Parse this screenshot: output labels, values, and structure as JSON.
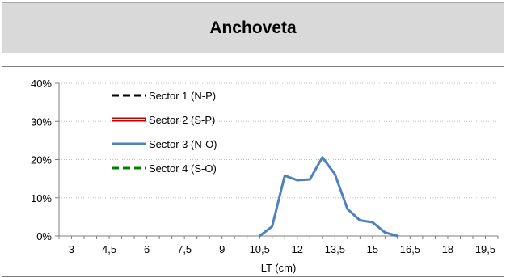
{
  "header": {
    "title": "Anchoveta"
  },
  "chart_data": {
    "type": "line",
    "title": "Anchoveta",
    "xlabel": "LT (cm)",
    "ylabel": "",
    "categories": [
      "3",
      "4,5",
      "6",
      "7,5",
      "9",
      "10,5",
      "12",
      "13,5",
      "15",
      "16,5",
      "18",
      "19,5"
    ],
    "x_range": [
      2.5,
      20
    ],
    "ylim": [
      0,
      40
    ],
    "y_ticks": [
      "0%",
      "10%",
      "20%",
      "30%",
      "40%"
    ],
    "grid": "horizontal dotted",
    "legend_position": "top-left",
    "series": [
      {
        "name": "Sector 1 (N-P)",
        "color": "#000000",
        "style": "dashed",
        "points": []
      },
      {
        "name": "Sector 2 (S-P)",
        "color": "#c00000",
        "style": "double",
        "points": []
      },
      {
        "name": "Sector 3 (N-O)",
        "color": "#4f81bd",
        "style": "solid",
        "points": [
          [
            10.5,
            0
          ],
          [
            11,
            2.5
          ],
          [
            11.5,
            15.8
          ],
          [
            12,
            14.6
          ],
          [
            12.5,
            14.8
          ],
          [
            13,
            20.6
          ],
          [
            13.5,
            16.2
          ],
          [
            14,
            7.1
          ],
          [
            14.5,
            4.1
          ],
          [
            15,
            3.6
          ],
          [
            15.5,
            0.9
          ],
          [
            16,
            0
          ]
        ]
      },
      {
        "name": "Sector 4 (S-O)",
        "color": "#008000",
        "style": "dashed",
        "points": []
      }
    ]
  }
}
